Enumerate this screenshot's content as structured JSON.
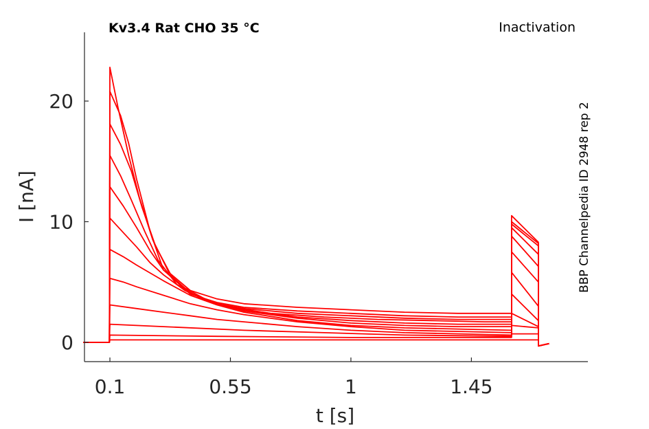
{
  "chart_data": {
    "type": "line",
    "title": "Kv3.4  Rat  CHO  35 °C",
    "protocol_label": "Inactivation",
    "source_label": "BBP Channelpedia ID 2948 rep 2",
    "xlabel": "t [s]",
    "ylabel": "I [nA]",
    "xlim": [
      0.005,
      1.885
    ],
    "ylim": [
      -1.6,
      25.7
    ],
    "xticks": [
      0.1,
      0.55,
      1,
      1.45
    ],
    "xtick_labels": [
      "0.1",
      "0.55",
      "1",
      "1.45"
    ],
    "yticks": [
      0,
      10,
      20
    ],
    "ytick_labels": [
      "0",
      "10",
      "20"
    ],
    "grid": false,
    "legend": "none",
    "color": "#ff0000",
    "series": [
      {
        "values": [
          [
            0.0,
            0.0
          ],
          [
            0.098,
            0.0
          ],
          [
            0.1,
            22.8
          ],
          [
            0.13,
            19.5
          ],
          [
            0.17,
            15.5
          ],
          [
            0.21,
            12.0
          ],
          [
            0.26,
            8.5
          ],
          [
            0.32,
            5.8
          ],
          [
            0.4,
            4.3
          ],
          [
            0.5,
            3.6
          ],
          [
            0.6,
            3.2
          ],
          [
            0.8,
            2.9
          ],
          [
            1.0,
            2.7
          ],
          [
            1.2,
            2.5
          ],
          [
            1.4,
            2.4
          ],
          [
            1.6,
            2.4
          ],
          [
            1.6,
            10.5
          ],
          [
            1.7,
            8.3
          ],
          [
            1.7,
            -0.3
          ],
          [
            1.74,
            -0.1
          ]
        ]
      },
      {
        "values": [
          [
            0.0,
            0.0
          ],
          [
            0.098,
            0.0
          ],
          [
            0.1,
            20.8
          ],
          [
            0.14,
            18.8
          ],
          [
            0.17,
            16.5
          ],
          [
            0.2,
            13.5
          ],
          [
            0.25,
            9.2
          ],
          [
            0.3,
            6.0
          ],
          [
            0.4,
            4.0
          ],
          [
            0.5,
            3.3
          ],
          [
            0.6,
            2.9
          ],
          [
            0.8,
            2.6
          ],
          [
            1.0,
            2.4
          ],
          [
            1.2,
            2.2
          ],
          [
            1.4,
            2.1
          ],
          [
            1.6,
            2.1
          ],
          [
            1.6,
            10.0
          ],
          [
            1.7,
            8.2
          ],
          [
            1.7,
            -0.3
          ],
          [
            1.74,
            -0.1
          ]
        ]
      },
      {
        "values": [
          [
            0.0,
            0.0
          ],
          [
            0.098,
            0.0
          ],
          [
            0.1,
            18.1
          ],
          [
            0.14,
            16.4
          ],
          [
            0.18,
            14.2
          ],
          [
            0.22,
            11.2
          ],
          [
            0.27,
            8.0
          ],
          [
            0.33,
            5.5
          ],
          [
            0.4,
            4.1
          ],
          [
            0.5,
            3.2
          ],
          [
            0.6,
            2.8
          ],
          [
            0.8,
            2.4
          ],
          [
            1.0,
            2.2
          ],
          [
            1.2,
            2.0
          ],
          [
            1.4,
            1.9
          ],
          [
            1.6,
            1.9
          ],
          [
            1.6,
            9.8
          ],
          [
            1.7,
            8.0
          ],
          [
            1.7,
            -0.3
          ],
          [
            1.74,
            -0.1
          ]
        ]
      },
      {
        "values": [
          [
            0.0,
            0.0
          ],
          [
            0.098,
            0.0
          ],
          [
            0.1,
            15.5
          ],
          [
            0.14,
            13.8
          ],
          [
            0.18,
            11.8
          ],
          [
            0.23,
            9.2
          ],
          [
            0.28,
            6.8
          ],
          [
            0.35,
            4.8
          ],
          [
            0.45,
            3.5
          ],
          [
            0.55,
            2.9
          ],
          [
            0.7,
            2.4
          ],
          [
            0.9,
            2.1
          ],
          [
            1.1,
            1.9
          ],
          [
            1.3,
            1.8
          ],
          [
            1.5,
            1.7
          ],
          [
            1.6,
            1.7
          ],
          [
            1.6,
            9.5
          ],
          [
            1.7,
            7.3
          ],
          [
            1.7,
            -0.3
          ],
          [
            1.74,
            -0.1
          ]
        ]
      },
      {
        "values": [
          [
            0.0,
            0.0
          ],
          [
            0.098,
            0.0
          ],
          [
            0.1,
            12.9
          ],
          [
            0.15,
            11.3
          ],
          [
            0.2,
            9.5
          ],
          [
            0.25,
            7.6
          ],
          [
            0.3,
            6.0
          ],
          [
            0.38,
            4.5
          ],
          [
            0.48,
            3.3
          ],
          [
            0.6,
            2.7
          ],
          [
            0.8,
            2.1
          ],
          [
            1.0,
            1.8
          ],
          [
            1.2,
            1.6
          ],
          [
            1.4,
            1.5
          ],
          [
            1.6,
            1.5
          ],
          [
            1.6,
            8.8
          ],
          [
            1.7,
            6.3
          ],
          [
            1.7,
            -0.3
          ],
          [
            1.74,
            -0.1
          ]
        ]
      },
      {
        "values": [
          [
            0.0,
            0.0
          ],
          [
            0.098,
            0.0
          ],
          [
            0.1,
            10.3
          ],
          [
            0.15,
            9.1
          ],
          [
            0.2,
            7.9
          ],
          [
            0.25,
            6.6
          ],
          [
            0.3,
            5.6
          ],
          [
            0.38,
            4.3
          ],
          [
            0.48,
            3.3
          ],
          [
            0.6,
            2.6
          ],
          [
            0.8,
            2.0
          ],
          [
            1.0,
            1.6
          ],
          [
            1.2,
            1.4
          ],
          [
            1.4,
            1.3
          ],
          [
            1.6,
            1.3
          ],
          [
            1.6,
            7.5
          ],
          [
            1.7,
            5.0
          ],
          [
            1.7,
            -0.3
          ],
          [
            1.74,
            -0.1
          ]
        ]
      },
      {
        "values": [
          [
            0.0,
            0.0
          ],
          [
            0.098,
            0.0
          ],
          [
            0.1,
            7.7
          ],
          [
            0.15,
            7.1
          ],
          [
            0.2,
            6.4
          ],
          [
            0.3,
            5.1
          ],
          [
            0.4,
            3.9
          ],
          [
            0.5,
            3.1
          ],
          [
            0.6,
            2.5
          ],
          [
            0.8,
            1.8
          ],
          [
            1.0,
            1.4
          ],
          [
            1.2,
            1.2
          ],
          [
            1.4,
            1.1
          ],
          [
            1.6,
            1.0
          ],
          [
            1.6,
            5.8
          ],
          [
            1.7,
            3.0
          ],
          [
            1.7,
            -0.3
          ],
          [
            1.74,
            -0.1
          ]
        ]
      },
      {
        "values": [
          [
            0.0,
            0.0
          ],
          [
            0.098,
            0.0
          ],
          [
            0.1,
            5.3
          ],
          [
            0.15,
            5.0
          ],
          [
            0.2,
            4.6
          ],
          [
            0.3,
            3.9
          ],
          [
            0.4,
            3.2
          ],
          [
            0.5,
            2.7
          ],
          [
            0.6,
            2.3
          ],
          [
            0.8,
            1.7
          ],
          [
            1.0,
            1.3
          ],
          [
            1.2,
            1.0
          ],
          [
            1.4,
            0.9
          ],
          [
            1.6,
            0.8
          ],
          [
            1.6,
            4.0
          ],
          [
            1.7,
            1.8
          ],
          [
            1.7,
            -0.3
          ],
          [
            1.74,
            -0.1
          ]
        ]
      },
      {
        "values": [
          [
            0.0,
            0.0
          ],
          [
            0.098,
            0.0
          ],
          [
            0.1,
            3.1
          ],
          [
            0.2,
            2.8
          ],
          [
            0.3,
            2.5
          ],
          [
            0.4,
            2.2
          ],
          [
            0.5,
            1.9
          ],
          [
            0.6,
            1.7
          ],
          [
            0.8,
            1.3
          ],
          [
            1.0,
            1.0
          ],
          [
            1.2,
            0.8
          ],
          [
            1.4,
            0.7
          ],
          [
            1.6,
            0.6
          ],
          [
            1.6,
            2.4
          ],
          [
            1.7,
            1.3
          ],
          [
            1.7,
            -0.3
          ],
          [
            1.74,
            -0.1
          ]
        ]
      },
      {
        "values": [
          [
            0.0,
            0.0
          ],
          [
            0.098,
            0.0
          ],
          [
            0.1,
            1.5
          ],
          [
            0.3,
            1.3
          ],
          [
            0.6,
            1.0
          ],
          [
            0.9,
            0.8
          ],
          [
            1.2,
            0.6
          ],
          [
            1.6,
            0.5
          ],
          [
            1.6,
            1.4
          ],
          [
            1.7,
            1.2
          ],
          [
            1.7,
            -0.3
          ],
          [
            1.74,
            -0.1
          ]
        ]
      },
      {
        "values": [
          [
            0.0,
            0.0
          ],
          [
            0.098,
            0.0
          ],
          [
            0.1,
            0.6
          ],
          [
            0.5,
            0.5
          ],
          [
            1.0,
            0.4
          ],
          [
            1.6,
            0.4
          ],
          [
            1.6,
            0.7
          ],
          [
            1.7,
            0.7
          ],
          [
            1.7,
            -0.3
          ],
          [
            1.74,
            -0.1
          ]
        ]
      },
      {
        "values": [
          [
            0.0,
            0.0
          ],
          [
            0.098,
            0.0
          ],
          [
            0.1,
            0.2
          ],
          [
            1.0,
            0.2
          ],
          [
            1.6,
            0.2
          ],
          [
            1.7,
            0.2
          ],
          [
            1.7,
            -0.3
          ],
          [
            1.74,
            -0.1
          ]
        ]
      }
    ]
  }
}
